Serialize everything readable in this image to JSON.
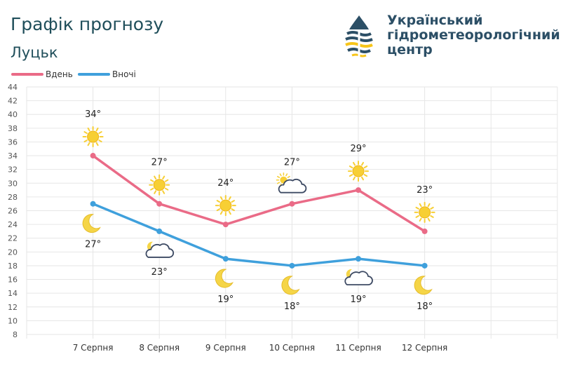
{
  "header": {
    "title": "Графік прогнозу",
    "city": "Луцьк"
  },
  "org": {
    "line1": "Український",
    "line2": "гідрометеорологічний",
    "line3": "центр",
    "logo_icon": "droplet-logo-icon"
  },
  "colors": {
    "day": "#ea6b87",
    "night": "#3fa0dc",
    "grid": "#e6e6e6",
    "sun": "#f7cf34",
    "moon": "#f5d547",
    "cloud": "#3d4a63"
  },
  "chart_data": {
    "type": "line",
    "categories": [
      "7 Серпня",
      "8 Серпня",
      "9 Серпня",
      "10 Серпня",
      "11 Серпня",
      "12 Серпня"
    ],
    "ylim": [
      8,
      44
    ],
    "yticks": [
      8,
      10,
      12,
      14,
      16,
      18,
      20,
      22,
      24,
      26,
      28,
      30,
      32,
      34,
      36,
      38,
      40,
      42,
      44
    ],
    "grid": true,
    "legend_position": "top-left",
    "series": [
      {
        "name": "Вдень",
        "values": [
          34,
          27,
          24,
          27,
          29,
          23
        ],
        "labels": [
          "34°",
          "27°",
          "24°",
          "27°",
          "29°",
          "23°"
        ],
        "icons": [
          "sun-icon",
          "sun-icon",
          "sun-icon",
          "sun-cloud-icon",
          "sun-icon",
          "sun-icon"
        ]
      },
      {
        "name": "Вночі",
        "values": [
          27,
          23,
          19,
          18,
          19,
          18
        ],
        "labels": [
          "27°",
          "23°",
          "19°",
          "18°",
          "19°",
          "18°"
        ],
        "icons": [
          "moon-icon",
          "moon-cloud-icon",
          "moon-icon",
          "moon-icon",
          "moon-cloud-icon",
          "moon-icon"
        ]
      }
    ]
  }
}
